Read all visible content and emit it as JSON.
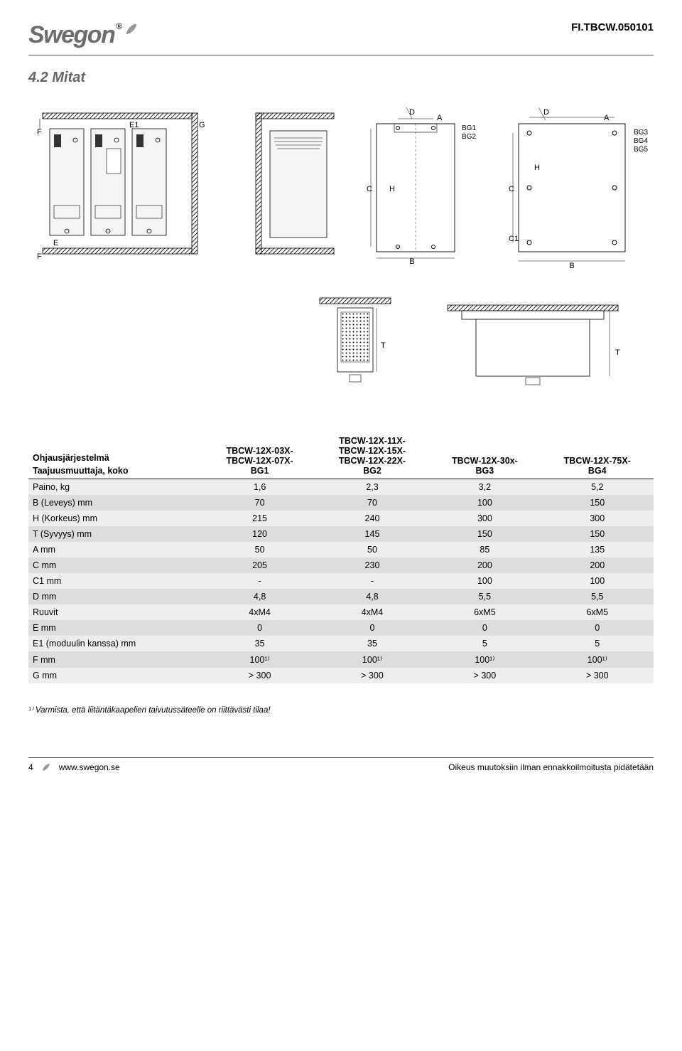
{
  "header": {
    "logo_text": "Swegon",
    "doc_code": "FI.TBCW.050101"
  },
  "section_title": "4.2 Mitat",
  "drawings": {
    "bg1_bg2_labels": [
      "BG1",
      "BG2"
    ],
    "bg3_bg4_bg5_labels": [
      "BG3",
      "BG4",
      "BG5"
    ],
    "dim_letters": {
      "A": "A",
      "B": "B",
      "C": "C",
      "C1": "C1",
      "D": "D",
      "E": "E",
      "E1": "E1",
      "F": "F",
      "G": "G",
      "H": "H",
      "T": "T"
    },
    "colors": {
      "stroke": "#000000",
      "hatch": "#000000",
      "fill": "#ffffff",
      "module_fill": "#f2f2f2"
    }
  },
  "table": {
    "header_row": {
      "col1_line1": "Ohjausjärjestelmä",
      "col1_line2": "Taajuusmuuttaja, koko",
      "col2": [
        "TBCW-12X-03X-",
        "TBCW-12X-07X-",
        "",
        "BG1"
      ],
      "col3": [
        "TBCW-12X-11X-",
        "TBCW-12X-15X-",
        "TBCW-12X-22X-",
        "BG2"
      ],
      "col4": [
        "TBCW-12X-30x-",
        "",
        "",
        "BG3"
      ],
      "col5": [
        "TBCW-12X-75X-",
        "",
        "",
        "BG4"
      ]
    },
    "rows": [
      {
        "label": "Paino, kg",
        "v": [
          "1,6",
          "2,3",
          "3,2",
          "5,2"
        ]
      },
      {
        "label": "B (Leveys) mm",
        "v": [
          "70",
          "70",
          "100",
          "150"
        ]
      },
      {
        "label": "H (Korkeus) mm",
        "v": [
          "215",
          "240",
          "300",
          "300"
        ]
      },
      {
        "label": "T (Syvyys) mm",
        "v": [
          "120",
          "145",
          "150",
          "150"
        ]
      },
      {
        "label": "A mm",
        "v": [
          "50",
          "50",
          "85",
          "135"
        ]
      },
      {
        "label": "C mm",
        "v": [
          "205",
          "230",
          "200",
          "200"
        ]
      },
      {
        "label": "C1 mm",
        "v": [
          "-",
          "-",
          "100",
          "100"
        ]
      },
      {
        "label": "D mm",
        "v": [
          "4,8",
          "4,8",
          "5,5",
          "5,5"
        ]
      },
      {
        "label": "Ruuvit",
        "v": [
          "4xM4",
          "4xM4",
          "6xM5",
          "6xM5"
        ]
      },
      {
        "label": "E mm",
        "v": [
          "0",
          "0",
          "0",
          "0"
        ]
      },
      {
        "label": "E1 (moduulin kanssa) mm",
        "v": [
          "35",
          "35",
          "5",
          "5"
        ]
      },
      {
        "label": "F mm",
        "v": [
          "100¹⁾",
          "100¹⁾",
          "100¹⁾",
          "100¹⁾"
        ]
      },
      {
        "label": "G mm",
        "v": [
          "> 300",
          "> 300",
          "> 300",
          "> 300"
        ]
      }
    ],
    "row_colors": {
      "light": "#eeeeee",
      "dark": "#dddddd"
    }
  },
  "footnote": "¹⁾ Varmista, että liitäntäkaapelien taivutussäteelle on riittävästi tilaa!",
  "footer": {
    "page_num": "4",
    "url": "www.swegon.se",
    "right": "Oikeus muutoksiin ilman ennakkoilmoitusta pidätetään"
  }
}
